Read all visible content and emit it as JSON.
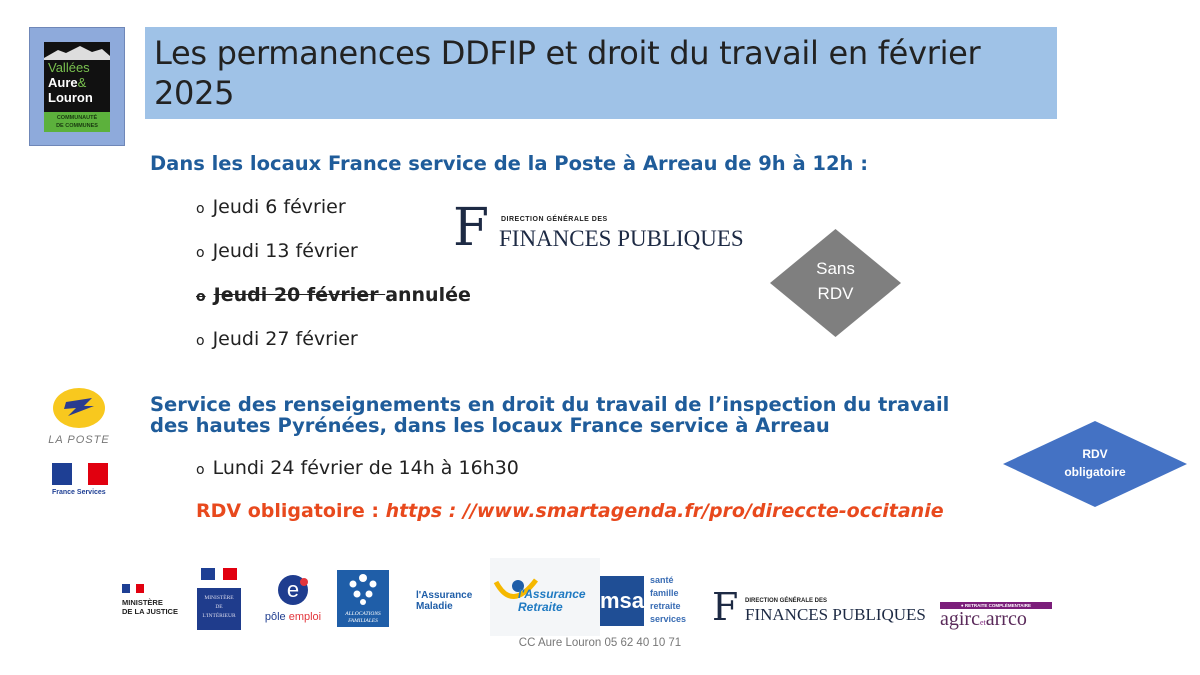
{
  "header": {
    "title": "Les permanences DDFIP et droit du travail en février 2025"
  },
  "cc_logo": {
    "line1": "Vallées",
    "line2": "Aure",
    "amp": "&",
    "line3": "Louron",
    "line4": "COMMUNAUTÉ",
    "line5": "DE COMMUNES"
  },
  "section1": {
    "heading": "Dans les locaux France service de la Poste à Arreau de 9h à 12h :",
    "items": [
      {
        "bullet": "o",
        "text": "Jeudi 6 février"
      },
      {
        "bullet": "o",
        "text": "Jeudi 13 février"
      },
      {
        "bullet": "o",
        "text": "Jeudi 20 février ",
        "suffix": "annulée"
      },
      {
        "bullet": "o",
        "text": "Jeudi 27 février"
      }
    ],
    "badge": {
      "line1": "Sans",
      "line2": "RDV",
      "color": "#7f7f7f"
    }
  },
  "dgfip": {
    "small": "DIRECTION GÉNÉRALE DES",
    "big": "FINANCES PUBLIQUES"
  },
  "laposte": {
    "label": "LA POSTE"
  },
  "france_services": {
    "label": "France Services"
  },
  "section2": {
    "heading_line1": "Service des renseignements en droit du travail de l’inspection du travail",
    "heading_line2": "des hautes Pyrénées, dans les locaux France service à Arreau",
    "item": {
      "bullet": "o",
      "text": "Lundi 24 février  de 14h à 16h30"
    },
    "rdv_label": "RDV obligatoire : ",
    "rdv_url": "https : //www.smartagenda.fr/pro/direccte-occitanie",
    "badge": {
      "line1": "RDV",
      "line2": "obligatoire",
      "color": "#4472c4"
    }
  },
  "partners": {
    "justice": {
      "l1": "MINISTÈRE",
      "l2": "DE LA JUSTICE"
    },
    "interieur": {
      "l1": "MINISTÈRE",
      "l2": "DE",
      "l3": "L'INTÉRIEUR"
    },
    "pole_emploi": {
      "l1": "pôle",
      "l2": "emploi"
    },
    "caf": {
      "l1": "ALLOCATIONS",
      "l2": "FAMILIALES"
    },
    "ameli": {
      "l1": "l'Assurance",
      "l2": "Maladie"
    },
    "retraite": {
      "l1": "l'Assurance",
      "l2": "Retraite"
    },
    "msa": {
      "logo": "msa",
      "l1": "santé",
      "l2": "famille",
      "l3": "retraite",
      "l4": "services"
    },
    "dgfip": {
      "small": "DIRECTION GÉNÉRALE DES",
      "big": "FINANCES PUBLIQUES"
    },
    "agirc": {
      "top": "● RETRAITE COMPLÉMENTAIRE",
      "l1": "agirc",
      "et": "et",
      "l2": "arrco"
    }
  },
  "footer": {
    "text": "CC Aure Louron 05 62 40 10 71"
  },
  "colors": {
    "title_bg": "#9fc2e7",
    "heading": "#1f5c9a",
    "link": "#e8491d"
  }
}
